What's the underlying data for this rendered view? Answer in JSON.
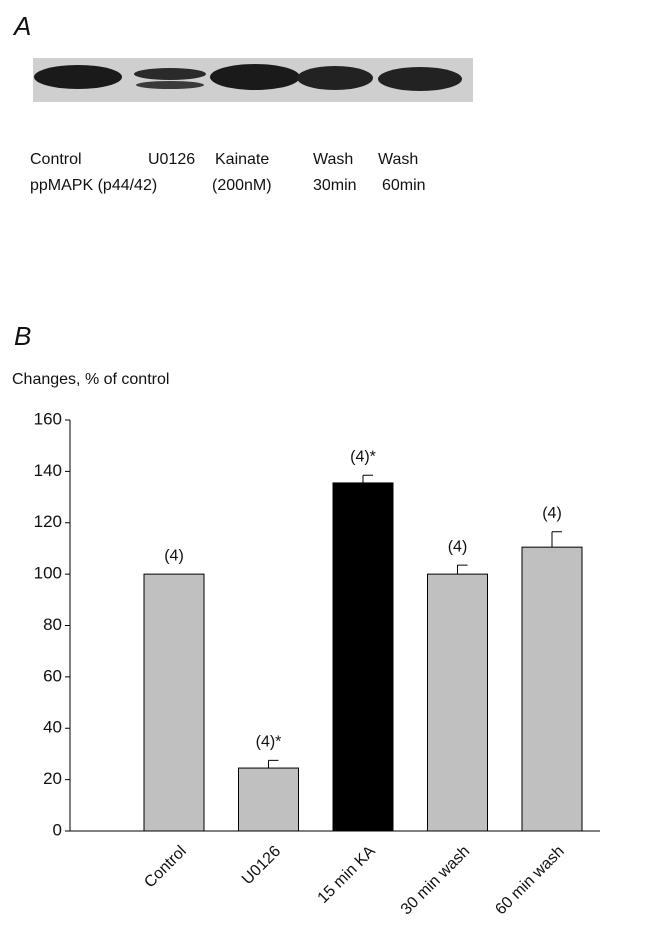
{
  "panel_a": {
    "label": "A",
    "row1": [
      "Control",
      "U0126",
      "Kainate",
      "Wash",
      "Wash"
    ],
    "row2": [
      "ppMAPK (p44/42)",
      "(200nM)",
      "30min",
      "60min"
    ]
  },
  "chart_data": {
    "type": "bar",
    "panel_label": "B",
    "y_label": "Changes, % of control",
    "categories": [
      "Control",
      "U0126",
      "15 min KA",
      "30 min wash",
      "60 min wash"
    ],
    "values": [
      100,
      24.5,
      135.5,
      100,
      110.5
    ],
    "errors": [
      0,
      3,
      3,
      3.5,
      6
    ],
    "annotations": [
      "(4)",
      "(4)*",
      "(4)*",
      "(4)",
      "(4)"
    ],
    "colors": [
      "#c0c0c0",
      "#c0c0c0",
      "#000000",
      "#c0c0c0",
      "#c0c0c0"
    ],
    "ylim": [
      0,
      160
    ],
    "yticks": [
      0,
      20,
      40,
      60,
      80,
      100,
      120,
      140,
      160
    ]
  }
}
